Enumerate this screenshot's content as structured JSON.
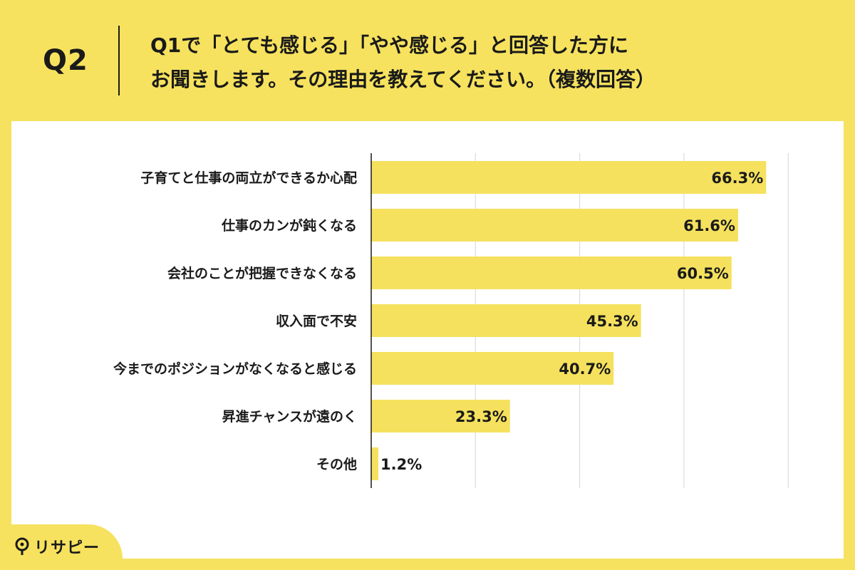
{
  "header": {
    "q_number": "Q2",
    "question_line1": "Q1で「とても感じる」「やや感じる」と回答した方に",
    "question_line2": "お聞きします。その理由を教えてください。（複数回答）"
  },
  "logo": {
    "text": "リサピー",
    "icon": "pin-icon"
  },
  "colors": {
    "background": "#f6e25e",
    "bar": "#f5e15e",
    "panel": "#ffffff",
    "text": "#1a1a1a"
  },
  "chart_data": {
    "type": "bar",
    "orientation": "horizontal",
    "categories": [
      "子育てと仕事の両立ができるか心配",
      "仕事のカンが鈍くなる",
      "会社のことが把握できなくなる",
      "収入面で不安",
      "今までのポジションがなくなると感じる",
      "昇進チャンスが遠のく",
      "その他"
    ],
    "values": [
      66.3,
      61.6,
      60.5,
      45.3,
      40.7,
      23.3,
      1.2
    ],
    "value_labels": [
      "66.3%",
      "61.6%",
      "60.5%",
      "45.3%",
      "40.7%",
      "23.3%",
      "1.2%"
    ],
    "xlim": [
      0,
      70
    ],
    "grid": true
  }
}
